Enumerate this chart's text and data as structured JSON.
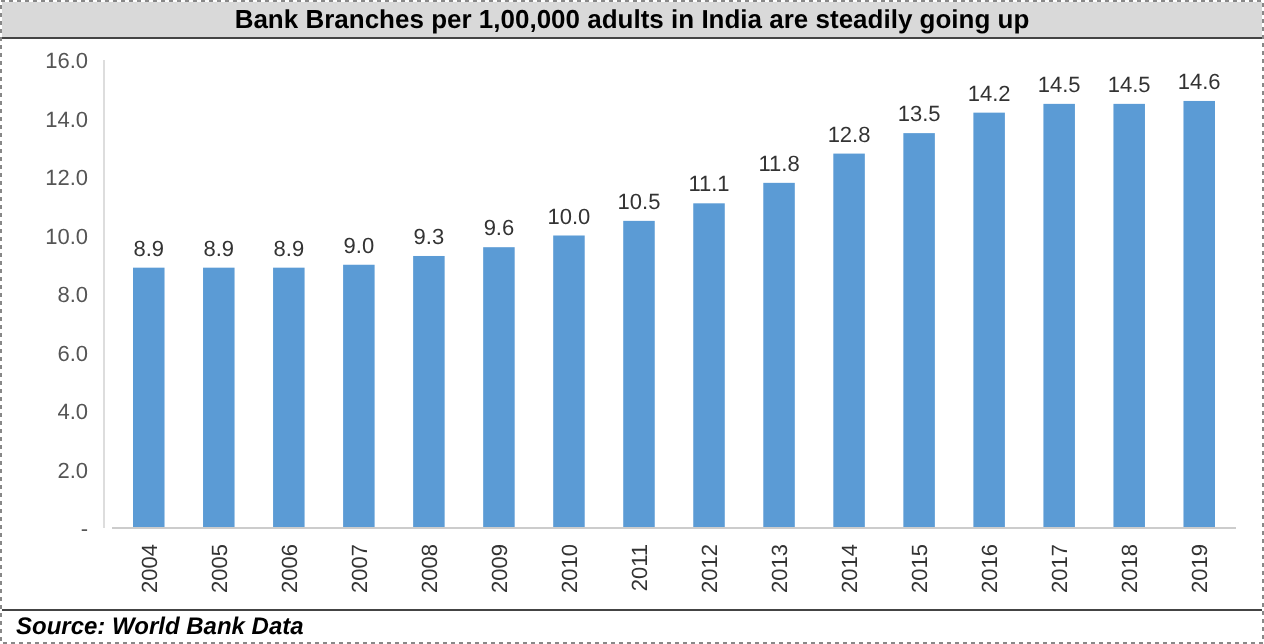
{
  "chart_data": {
    "type": "bar",
    "title": "Bank Branches per 1,00,000 adults in India are steadily going up",
    "categories": [
      "2004",
      "2005",
      "2006",
      "2007",
      "2008",
      "2009",
      "2010",
      "2011",
      "2012",
      "2013",
      "2014",
      "2015",
      "2016",
      "2017",
      "2018",
      "2019"
    ],
    "values": [
      8.9,
      8.9,
      8.9,
      9.0,
      9.3,
      9.6,
      10.0,
      10.5,
      11.1,
      11.8,
      12.8,
      13.5,
      14.2,
      14.5,
      14.5,
      14.6
    ],
    "value_labels": [
      "8.9",
      "8.9",
      "8.9",
      "9.0",
      "9.3",
      "9.6",
      "10.0",
      "10.5",
      "11.1",
      "11.8",
      "12.8",
      "13.5",
      "14.2",
      "14.5",
      "14.5",
      "14.6"
    ],
    "color": "#5b9bd5",
    "ylim": [
      0,
      16
    ],
    "yticks": [
      {
        "value": 0,
        "label": "-"
      },
      {
        "value": 2,
        "label": "2.0"
      },
      {
        "value": 4,
        "label": "4.0"
      },
      {
        "value": 6,
        "label": "6.0"
      },
      {
        "value": 8,
        "label": "8.0"
      },
      {
        "value": 10,
        "label": "10.0"
      },
      {
        "value": 12,
        "label": "12.0"
      },
      {
        "value": 14,
        "label": "14.0"
      },
      {
        "value": 16,
        "label": "16.0"
      }
    ],
    "annotations": [
      "Source: World Bank Data"
    ]
  }
}
